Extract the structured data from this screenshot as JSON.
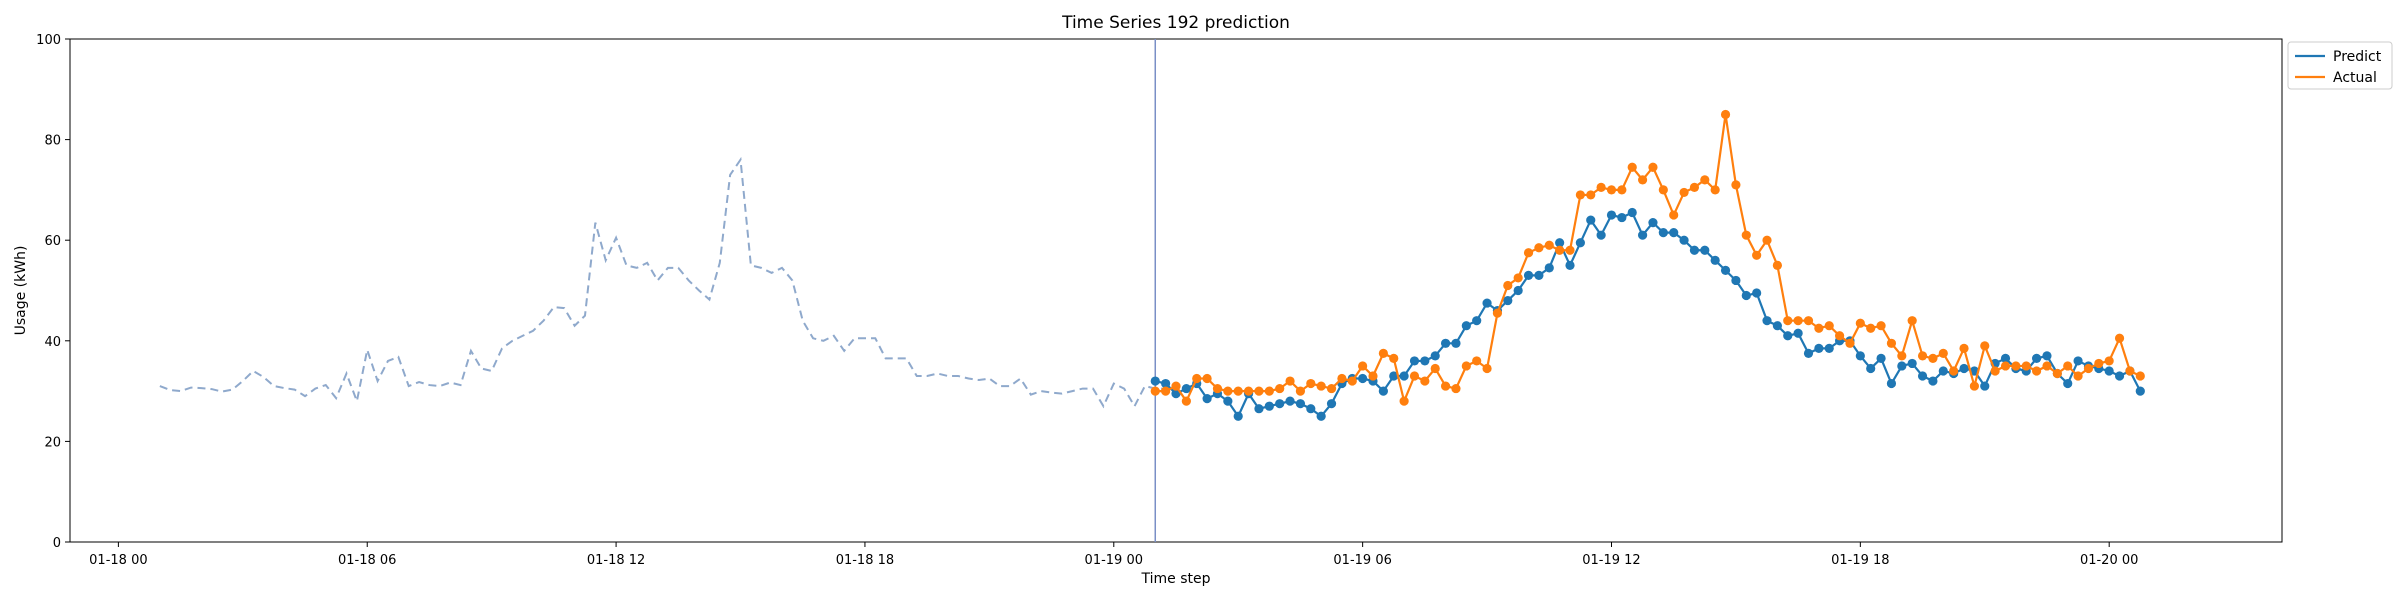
{
  "chart_data": {
    "type": "line",
    "title": "Time Series 192 prediction",
    "xlabel": "Time step",
    "ylabel": "Usage (kWh)",
    "ylim": [
      0,
      100
    ],
    "yticks": [
      0,
      20,
      40,
      60,
      80,
      100
    ],
    "xlim": [
      "2025-01-17 22:50",
      "2025-01-20 04:10"
    ],
    "xticks": [
      {
        "value": "2025-01-18 00:00",
        "label": "01-18 00"
      },
      {
        "value": "2025-01-18 06:00",
        "label": "01-18 06"
      },
      {
        "value": "2025-01-18 12:00",
        "label": "01-18 12"
      },
      {
        "value": "2025-01-18 18:00",
        "label": "01-18 18"
      },
      {
        "value": "2025-01-19 00:00",
        "label": "01-19 00"
      },
      {
        "value": "2025-01-19 06:00",
        "label": "01-19 06"
      },
      {
        "value": "2025-01-19 12:00",
        "label": "01-19 12"
      },
      {
        "value": "2025-01-19 18:00",
        "label": "01-19 18"
      },
      {
        "value": "2025-01-20 00:00",
        "label": "01-20 00"
      }
    ],
    "legend": {
      "placement": "outside-top-right",
      "entries": [
        "Predict",
        "Actual"
      ]
    },
    "grid": false,
    "vline": {
      "x": "2025-01-19 01:00",
      "color": "#7a8fc6"
    },
    "history": {
      "x_start": "2025-01-18 01:00",
      "x_step_minutes": 15,
      "color": "#8fa9cc",
      "style": "dashed",
      "values": [
        31,
        30.2,
        30,
        30.7,
        30.6,
        30.4,
        29.9,
        30.3,
        32,
        34,
        32.8,
        31,
        30.6,
        30.3,
        29,
        30.5,
        31.2,
        28.6,
        33.5,
        28,
        38.2,
        32,
        36,
        36.8,
        31,
        31.8,
        31.2,
        31,
        31.7,
        31.2,
        38,
        34.5,
        34,
        38.5,
        40,
        41,
        42,
        44,
        46.7,
        46.5,
        43,
        45,
        63.5,
        56,
        60.5,
        55,
        54.5,
        55.5,
        52,
        54.5,
        54.5,
        52,
        50,
        48.2,
        55.5,
        73,
        76,
        55,
        54.5,
        53.5,
        54.5,
        52,
        44,
        40.5,
        40,
        41,
        38,
        40.5,
        40.5,
        40.5,
        36.5,
        36.5,
        36.5,
        33,
        33,
        33.5,
        33,
        33,
        32.5,
        32.2,
        32.5,
        31,
        31,
        32.5,
        29.3,
        30,
        29.7,
        29.5,
        30,
        30.5,
        30.5,
        27,
        31.5,
        30.5,
        27,
        31,
        30.5,
        30.5
      ]
    },
    "series": [
      {
        "name": "Predict",
        "color": "#1f77b4",
        "x_start": "2025-01-19 01:00",
        "x_step_minutes": 15,
        "values": [
          32,
          31.5,
          29.5,
          30.5,
          31.5,
          28.5,
          29.5,
          28,
          25,
          29.5,
          26.5,
          27,
          27.5,
          28,
          27.5,
          26.5,
          25,
          27.5,
          31.5,
          32.5,
          32.5,
          32,
          30,
          33,
          33,
          36,
          36,
          37,
          39.5,
          39.5,
          43,
          44,
          47.5,
          46,
          48,
          50,
          53,
          53,
          54.5,
          59.5,
          55,
          59.5,
          64,
          61,
          65,
          64.5,
          65.5,
          61,
          63.5,
          61.5,
          61.5,
          60,
          58,
          58,
          56,
          54,
          52,
          49,
          49.5,
          44,
          43,
          41,
          41.5,
          37.5,
          38.5,
          38.5,
          40,
          40,
          37,
          34.5,
          36.5,
          31.5,
          35,
          35.5,
          33,
          32,
          34,
          33.5,
          34.5,
          34,
          31,
          35.5,
          36.5,
          34.5,
          34,
          36.5,
          37,
          33.5,
          31.5,
          36,
          35,
          34.5,
          34,
          33,
          34,
          30
        ]
      },
      {
        "name": "Actual",
        "color": "#ff7f0e",
        "x_start": "2025-01-19 01:00",
        "x_step_minutes": 15,
        "values": [
          30,
          30,
          31,
          28,
          32.5,
          32.5,
          30.5,
          30,
          30,
          30,
          30,
          30,
          30.5,
          32,
          30,
          31.5,
          31,
          30.5,
          32.5,
          32,
          35,
          33,
          37.5,
          36.5,
          28,
          33,
          32,
          34.5,
          31,
          30.5,
          35,
          36,
          34.5,
          45.5,
          51,
          52.5,
          57.5,
          58.5,
          59,
          58,
          58,
          69,
          69,
          70.5,
          70,
          70,
          74.5,
          72,
          74.5,
          70,
          65,
          69.5,
          70.5,
          72,
          70,
          85,
          71,
          61,
          57,
          60,
          55,
          44,
          44,
          44,
          42.5,
          43,
          41,
          39.5,
          43.5,
          42.5,
          43,
          39.5,
          37,
          44,
          37,
          36.5,
          37.5,
          34,
          38.5,
          31,
          39,
          34,
          35,
          35,
          35,
          34,
          35,
          33.5,
          35,
          33,
          34.5,
          35.5,
          36,
          40.5,
          34,
          33
        ]
      }
    ]
  }
}
